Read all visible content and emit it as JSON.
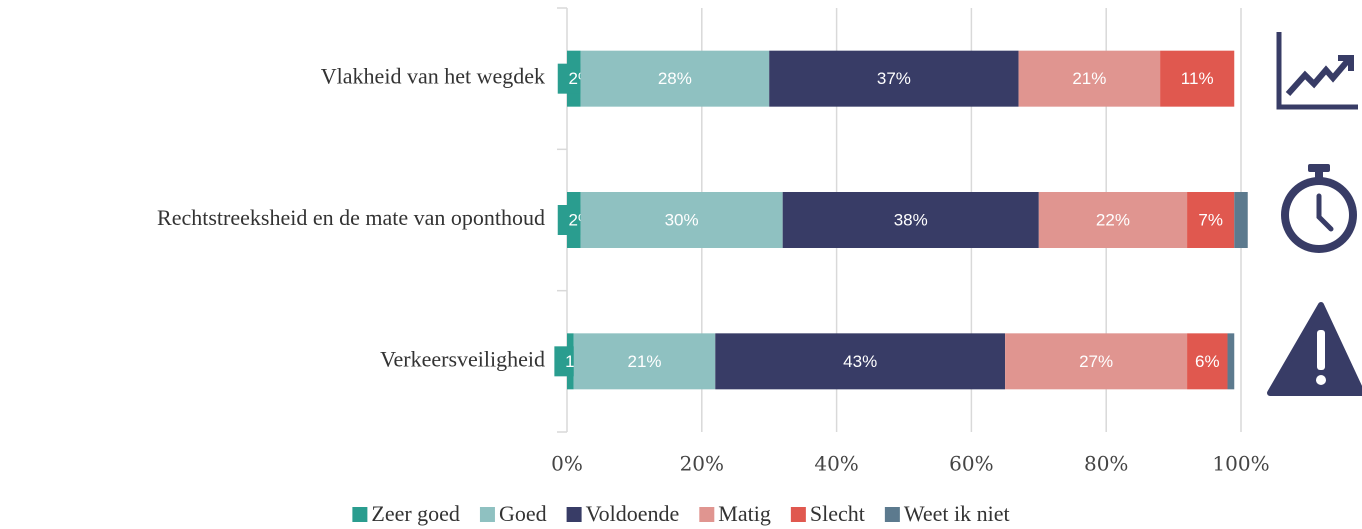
{
  "chart_data": {
    "type": "stacked_barh",
    "categories": [
      "Vlakheid van het wegdek",
      "Rechtstreeksheid en de mate van oponthoud",
      "Verkeersveiligheid"
    ],
    "series": [
      {
        "name": "Zeer goed",
        "color": "#2a9d8f",
        "values": [
          2,
          2,
          1
        ],
        "value_labels": [
          "2%",
          "2%",
          "1%"
        ]
      },
      {
        "name": "Goed",
        "color": "#8fc1c1",
        "values": [
          28,
          30,
          21
        ],
        "value_labels": [
          "28%",
          "30%",
          "21%"
        ]
      },
      {
        "name": "Voldoende",
        "color": "#383c66",
        "values": [
          37,
          38,
          43
        ],
        "value_labels": [
          "37%",
          "38%",
          "43%"
        ]
      },
      {
        "name": "Matig",
        "color": "#e09590",
        "values": [
          21,
          22,
          27
        ],
        "value_labels": [
          "21%",
          "22%",
          "27%"
        ]
      },
      {
        "name": "Slecht",
        "color": "#e0584f",
        "values": [
          11,
          7,
          6
        ],
        "value_labels": [
          "11%",
          "7%",
          "6%"
        ]
      },
      {
        "name": "Weet ik niet",
        "color": "#5c7a8e",
        "values": [
          0,
          2,
          1
        ]
      }
    ],
    "xlim": [
      0,
      100
    ],
    "xticks": [
      {
        "value": 0,
        "label": "0%"
      },
      {
        "value": 20,
        "label": "20%"
      },
      {
        "value": 40,
        "label": "40%"
      },
      {
        "value": 60,
        "label": "60%"
      },
      {
        "value": 80,
        "label": "80%"
      },
      {
        "value": 100,
        "label": "100%"
      }
    ],
    "grid": true,
    "legend": "bottom"
  }
}
